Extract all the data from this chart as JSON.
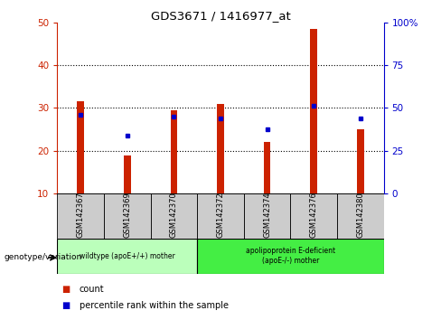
{
  "title": "GDS3671 / 1416977_at",
  "categories": [
    "GSM142367",
    "GSM142369",
    "GSM142370",
    "GSM142372",
    "GSM142374",
    "GSM142376",
    "GSM142380"
  ],
  "bar_values": [
    31.5,
    19.0,
    29.5,
    31.0,
    22.0,
    48.5,
    25.0
  ],
  "blue_marker_values": [
    28.5,
    23.5,
    28.0,
    27.5,
    25.0,
    30.5,
    27.5
  ],
  "bar_color": "#cc2200",
  "marker_color": "#0000cc",
  "ylim_left": [
    10,
    50
  ],
  "ylim_right": [
    0,
    100
  ],
  "yticks_left": [
    10,
    20,
    30,
    40,
    50
  ],
  "yticks_right": [
    0,
    25,
    50,
    75,
    100
  ],
  "group1_label": "wildtype (apoE+/+) mother",
  "group2_label": "apolipoprotein E-deficient\n(apoE-/-) mother",
  "group1_color": "#bbffbb",
  "group2_color": "#44ee44",
  "xlabel_label": "genotype/variation",
  "legend_count": "count",
  "legend_percentile": "percentile rank within the sample",
  "tick_color_left": "#cc2200",
  "tick_color_right": "#0000cc",
  "bar_width": 0.15
}
